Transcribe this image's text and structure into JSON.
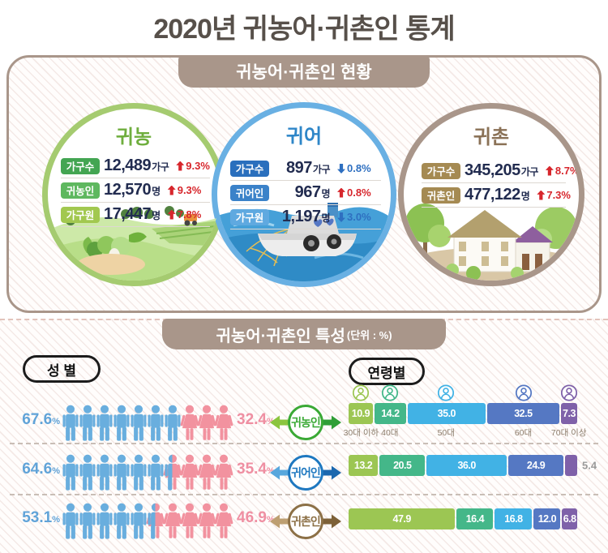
{
  "page": {
    "title": "2020년 귀농어·귀촌인 통계"
  },
  "section1": {
    "header": "귀농어·귀촌인 현황",
    "circles": [
      {
        "title": "귀농",
        "title_color": "#6fae3e",
        "ring": "#a5cb70",
        "rows": [
          {
            "label": "가구수",
            "badge": "#43a552",
            "value": "12,489",
            "unit": "가구",
            "dir": "up",
            "change": "9.3%"
          },
          {
            "label": "귀농인",
            "badge": "#5eb85f",
            "value": "12,570",
            "unit": "명",
            "dir": "up",
            "change": "9.3%"
          },
          {
            "label": "가구원",
            "badge": "#a2c84f",
            "value": "17,447",
            "unit": "명",
            "dir": "up",
            "change": "7.8%"
          }
        ]
      },
      {
        "title": "귀어",
        "title_color": "#2e86c8",
        "ring": "#69b0e3",
        "rows": [
          {
            "label": "가구수",
            "badge": "#2a6fbd",
            "value": "897",
            "unit": "가구",
            "dir": "down",
            "change": "0.8%"
          },
          {
            "label": "귀어인",
            "badge": "#3b82c9",
            "value": "967",
            "unit": "명",
            "dir": "up",
            "change": "0.8%"
          },
          {
            "label": "가구원",
            "badge": "#5fa9e0",
            "value": "1,197",
            "unit": "명",
            "dir": "down",
            "change": "3.0%"
          }
        ]
      },
      {
        "title": "귀촌",
        "title_color": "#8a7156",
        "ring": "#a9968a",
        "rows": [
          {
            "label": "가구수",
            "badge": "#a58a52",
            "value": "345,205",
            "unit": "가구",
            "dir": "up",
            "change": "8.7%"
          },
          {
            "label": "귀촌인",
            "badge": "#a58a52",
            "value": "477,122",
            "unit": "명",
            "dir": "up",
            "change": "7.3%"
          }
        ]
      }
    ]
  },
  "section2": {
    "header": "귀농어·귀촌인 특성",
    "header_unit": "(단위 : %)",
    "gender_badge": "성 별",
    "age_badge": "연령별",
    "pct_sign": "%",
    "male_color": "#69aede",
    "female_color": "#f2929f",
    "male_pct_color": "#60a3d8",
    "female_pct_color": "#ef8fa2",
    "age_labels": [
      "30대 이하",
      "40대",
      "50대",
      "60대",
      "70대 이상"
    ],
    "age_colors": [
      "#9cc653",
      "#44b789",
      "#41b2e5",
      "#5578c3",
      "#7f61a9"
    ],
    "rows": [
      {
        "name": "귀농인",
        "ring": "#3aa935",
        "arrow_left": "#8bc53f",
        "arrow_right": "#2f9e36",
        "male": "67.6",
        "female": "32.4",
        "icons": {
          "male": 7,
          "split": 0,
          "female": 3
        },
        "ages": [
          10.9,
          14.2,
          35.0,
          32.5,
          7.3
        ],
        "outside_label_last": false
      },
      {
        "name": "귀어인",
        "ring": "#1e78c0",
        "arrow_left": "#58a7dd",
        "arrow_right": "#1b67ae",
        "male": "64.6",
        "female": "35.4",
        "icons": {
          "male": 6,
          "split": 1,
          "female": 3
        },
        "ages": [
          13.2,
          20.5,
          36.0,
          24.9,
          5.4
        ],
        "outside_label_last": true
      },
      {
        "name": "귀촌인",
        "ring": "#8c7046",
        "arrow_left": "#bd9f72",
        "arrow_right": "#7d6138",
        "male": "53.1",
        "female": "46.9",
        "icons": {
          "male": 5,
          "split": 1,
          "female": 4
        },
        "ages": [
          47.9,
          16.4,
          16.8,
          12.0,
          6.8
        ],
        "outside_label_last": false
      }
    ]
  },
  "chart_data": [
    {
      "type": "table",
      "title": "귀농어·귀촌인 현황",
      "groups": [
        {
          "name": "귀농",
          "rows": [
            [
              "가구수",
              "12,489가구",
              "+9.3%"
            ],
            [
              "귀농인",
              "12,570명",
              "+9.3%"
            ],
            [
              "가구원",
              "17,447명",
              "+7.8%"
            ]
          ]
        },
        {
          "name": "귀어",
          "rows": [
            [
              "가구수",
              "897가구",
              "-0.8%"
            ],
            [
              "귀어인",
              "967명",
              "+0.8%"
            ],
            [
              "가구원",
              "1,197명",
              "-3.0%"
            ]
          ]
        },
        {
          "name": "귀촌",
          "rows": [
            [
              "가구수",
              "345,205가구",
              "+8.7%"
            ],
            [
              "귀촌인",
              "477,122명",
              "+7.3%"
            ]
          ]
        }
      ]
    },
    {
      "type": "bar",
      "subtype": "pictograph-gender",
      "title": "성별",
      "unit": "%",
      "categories": [
        "귀농인",
        "귀어인",
        "귀촌인"
      ],
      "series": [
        {
          "name": "남성",
          "values": [
            67.6,
            64.6,
            53.1
          ]
        },
        {
          "name": "여성",
          "values": [
            32.4,
            35.4,
            46.9
          ]
        }
      ]
    },
    {
      "type": "bar",
      "subtype": "stacked-age",
      "title": "연령별",
      "unit": "%",
      "age_groups": [
        "30대 이하",
        "40대",
        "50대",
        "60대",
        "70대 이상"
      ],
      "categories": [
        "귀농인",
        "귀어인",
        "귀촌인"
      ],
      "series": [
        {
          "name": "귀농인",
          "values": [
            10.9,
            14.2,
            35.0,
            32.5,
            7.3
          ]
        },
        {
          "name": "귀어인",
          "values": [
            13.2,
            20.5,
            36.0,
            24.9,
            5.4
          ]
        },
        {
          "name": "귀촌인",
          "values": [
            47.9,
            16.4,
            16.8,
            12.0,
            6.8
          ]
        }
      ]
    }
  ]
}
